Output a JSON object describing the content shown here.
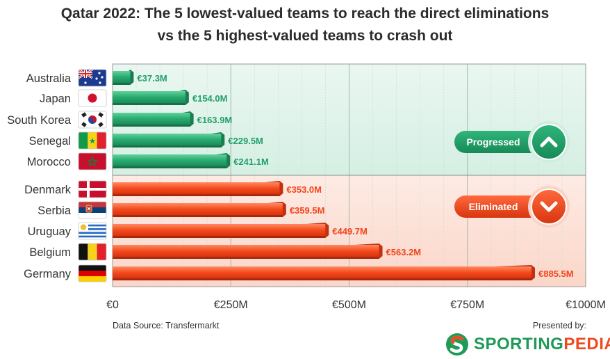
{
  "title_line1": "Qatar 2022: The 5 lowest-valued teams to reach the direct eliminations",
  "title_line2": "vs the 5 highest-valued teams to crash out",
  "source": "Data Source: Transfermarkt",
  "presented_by": "Presented by:",
  "brand": {
    "part1": "SPORTING",
    "part2": "PEDIA"
  },
  "colors": {
    "progressed": "#22a06b",
    "eliminated": "#f2461c",
    "progressed_bg": "#dff2ea",
    "eliminated_bg": "#fde3da",
    "brand_green": "#1f9a57",
    "brand_orange": "#f04a1f"
  },
  "chart_data": {
    "type": "bar",
    "orientation": "horizontal",
    "categories": [
      "Australia",
      "Japan",
      "South Korea",
      "Senegal",
      "Morocco",
      "Denmark",
      "Serbia",
      "Uruguay",
      "Belgium",
      "Germany"
    ],
    "values": [
      37.3,
      154.0,
      163.9,
      229.5,
      241.1,
      353.0,
      359.5,
      449.7,
      563.2,
      885.5
    ],
    "value_labels": [
      "€37.3M",
      "€154.0M",
      "€163.9M",
      "€229.5M",
      "€241.1M",
      "€353.0M",
      "€359.5M",
      "€449.7M",
      "€563.2M",
      "€885.5M"
    ],
    "groups": [
      "Progressed",
      "Progressed",
      "Progressed",
      "Progressed",
      "Progressed",
      "Eliminated",
      "Eliminated",
      "Eliminated",
      "Eliminated",
      "Eliminated"
    ],
    "flags": [
      "australia-flag",
      "japan-flag",
      "south-korea-flag",
      "senegal-flag",
      "morocco-flag",
      "denmark-flag",
      "serbia-flag",
      "uruguay-flag",
      "belgium-flag",
      "germany-flag"
    ],
    "xlim": [
      0,
      1000
    ],
    "xticks": [
      0,
      250,
      500,
      750,
      1000
    ],
    "xtick_labels": [
      "€0",
      "€250M",
      "€500M",
      "€750M",
      "€1000M"
    ],
    "grid": true,
    "group_labels": {
      "progressed": "Progressed",
      "eliminated": "Eliminated"
    },
    "group_icons": {
      "progressed": "chevron-up-icon",
      "eliminated": "chevron-down-icon"
    }
  }
}
